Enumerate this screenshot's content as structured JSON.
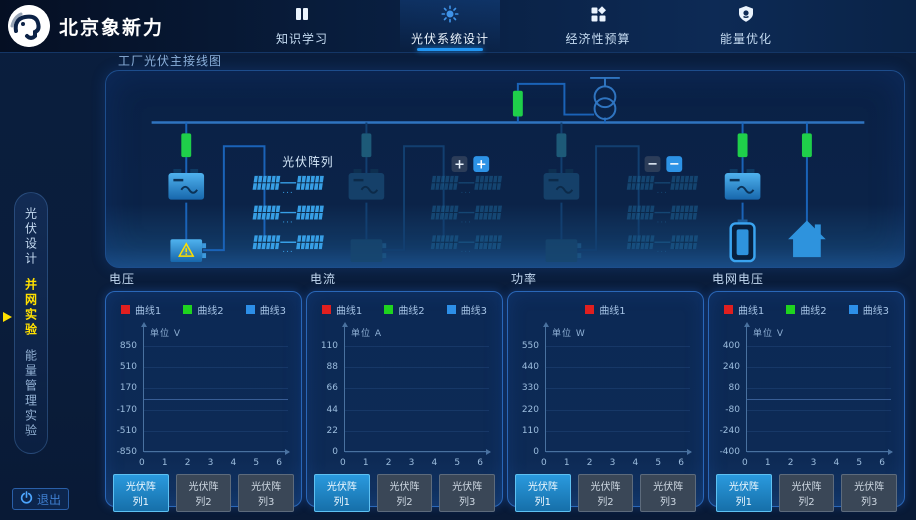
{
  "brand": {
    "name": "北京象新力"
  },
  "nav": {
    "items": [
      {
        "label": "知识学习",
        "icon": "book-icon",
        "active": false
      },
      {
        "label": "光伏系统设计",
        "icon": "sun-icon",
        "active": true
      },
      {
        "label": "经济性预算",
        "icon": "modules-icon",
        "active": false
      },
      {
        "label": "能量优化",
        "icon": "shield-icon",
        "active": false
      }
    ]
  },
  "sidebar": {
    "items": [
      {
        "label": "光伏设计",
        "active": false
      },
      {
        "label": "并网实验",
        "active": true
      },
      {
        "label": "能量管理实验",
        "active": false
      }
    ]
  },
  "diagram": {
    "title": "工厂光伏主接线图",
    "pv_array_label": "光伏阵列",
    "add_button_1": "+",
    "add_button_2": "+",
    "remove_button_1": "−",
    "remove_button_2": "−"
  },
  "exit": {
    "label": "退出",
    "icon": "power-icon"
  },
  "colors": {
    "accent": "#2196f3",
    "breaker_on_green": "#1fcf4a",
    "breaker_off_teal": "#1d5a78",
    "highlight_yellow": "#ffe000",
    "legend_red": "#e01f1f",
    "legend_green": "#1fd41f",
    "legend_blue": "#2d8fe8"
  },
  "charts": [
    {
      "title": "电压",
      "unit": "单位 V",
      "legend": [
        {
          "label": "曲线1",
          "color": "#e01f1f"
        },
        {
          "label": "曲线2",
          "color": "#1fd41f"
        },
        {
          "label": "曲线3",
          "color": "#2d8fe8"
        }
      ],
      "y_ticks": [
        850,
        510,
        170,
        -170,
        -510,
        -850
      ],
      "x_ticks": [
        0,
        1,
        2,
        3,
        4,
        5,
        6
      ],
      "zero_line": true,
      "buttons": [
        {
          "label": "光伏阵列1",
          "active": true
        },
        {
          "label": "光伏阵列2",
          "active": false
        },
        {
          "label": "光伏阵列3",
          "active": false
        }
      ]
    },
    {
      "title": "电流",
      "unit": "单位 A",
      "legend": [
        {
          "label": "曲线1",
          "color": "#e01f1f"
        },
        {
          "label": "曲线2",
          "color": "#1fd41f"
        },
        {
          "label": "曲线3",
          "color": "#2d8fe8"
        }
      ],
      "y_ticks": [
        110,
        88,
        66,
        44,
        22,
        0
      ],
      "x_ticks": [
        0,
        1,
        2,
        3,
        4,
        5,
        6
      ],
      "zero_line": false,
      "buttons": [
        {
          "label": "光伏阵列1",
          "active": true
        },
        {
          "label": "光伏阵列2",
          "active": false
        },
        {
          "label": "光伏阵列3",
          "active": false
        }
      ]
    },
    {
      "title": "功率",
      "unit": "单位 W",
      "legend": [
        {
          "label": "曲线1",
          "color": "#e01f1f"
        }
      ],
      "y_ticks": [
        550,
        440,
        330,
        220,
        110,
        0
      ],
      "x_ticks": [
        0,
        1,
        2,
        3,
        4,
        5,
        6
      ],
      "zero_line": false,
      "buttons": [
        {
          "label": "光伏阵列1",
          "active": true
        },
        {
          "label": "光伏阵列2",
          "active": false
        },
        {
          "label": "光伏阵列3",
          "active": false
        }
      ]
    },
    {
      "title": "电网电压",
      "unit": "单位 V",
      "legend": [
        {
          "label": "曲线1",
          "color": "#e01f1f"
        },
        {
          "label": "曲线2",
          "color": "#1fd41f"
        },
        {
          "label": "曲线3",
          "color": "#2d8fe8"
        }
      ],
      "y_ticks": [
        400,
        240,
        80,
        -80,
        -240,
        -400
      ],
      "x_ticks": [
        0,
        1,
        2,
        3,
        4,
        5,
        6
      ],
      "zero_line": true,
      "buttons": [
        {
          "label": "光伏阵列1",
          "active": true
        },
        {
          "label": "光伏阵列2",
          "active": false
        },
        {
          "label": "光伏阵列3",
          "active": false
        }
      ]
    }
  ],
  "chart_data": [
    {
      "type": "line",
      "title": "电压",
      "ylabel": "单位 V",
      "ylim": [
        -850,
        850
      ],
      "xlim": [
        0,
        6
      ],
      "series": [
        {
          "name": "曲线1",
          "values": []
        },
        {
          "name": "曲线2",
          "values": []
        },
        {
          "name": "曲线3",
          "values": []
        }
      ],
      "note": "axes shown, no data plotted yet"
    },
    {
      "type": "line",
      "title": "电流",
      "ylabel": "单位 A",
      "ylim": [
        0,
        110
      ],
      "xlim": [
        0,
        6
      ],
      "series": [
        {
          "name": "曲线1",
          "values": []
        },
        {
          "name": "曲线2",
          "values": []
        },
        {
          "name": "曲线3",
          "values": []
        }
      ],
      "note": "axes shown, no data plotted yet"
    },
    {
      "type": "line",
      "title": "功率",
      "ylabel": "单位 W",
      "ylim": [
        0,
        550
      ],
      "xlim": [
        0,
        6
      ],
      "series": [
        {
          "name": "曲线1",
          "values": []
        }
      ],
      "note": "axes shown, no data plotted yet"
    },
    {
      "type": "line",
      "title": "电网电压",
      "ylabel": "单位 V",
      "ylim": [
        -400,
        400
      ],
      "xlim": [
        0,
        6
      ],
      "series": [
        {
          "name": "曲线1",
          "values": []
        },
        {
          "name": "曲线2",
          "values": []
        },
        {
          "name": "曲线3",
          "values": []
        }
      ],
      "note": "axes shown, no data plotted yet"
    }
  ]
}
